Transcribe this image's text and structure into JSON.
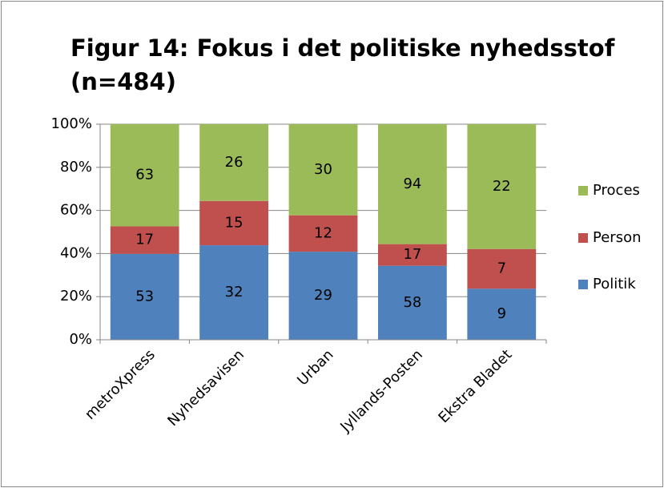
{
  "chart_data": {
    "type": "bar",
    "stacking": "percent",
    "title_lines": [
      "Figur 14: Fokus i det politiske nyhedsstof",
      "(n=484)"
    ],
    "categories": [
      "metroXpress",
      "Nyhedsavisen",
      "Urban",
      "Jyllands-Posten",
      "Ekstra Bladet"
    ],
    "series": [
      {
        "name": "Politik",
        "color": "#4f81bd",
        "values": [
          53,
          32,
          29,
          58,
          9
        ]
      },
      {
        "name": "Person",
        "color": "#c0504d",
        "values": [
          17,
          15,
          12,
          17,
          7
        ]
      },
      {
        "name": "Proces",
        "color": "#9bbb59",
        "values": [
          63,
          26,
          30,
          94,
          22
        ]
      }
    ],
    "ylim": [
      0,
      100
    ],
    "yticks": [
      {
        "value": 0,
        "label": "0%"
      },
      {
        "value": 20,
        "label": "20%"
      },
      {
        "value": 40,
        "label": "40%"
      },
      {
        "value": 60,
        "label": "60%"
      },
      {
        "value": 80,
        "label": "80%"
      },
      {
        "value": 100,
        "label": "100%"
      }
    ],
    "grid": true,
    "legend": "right"
  }
}
